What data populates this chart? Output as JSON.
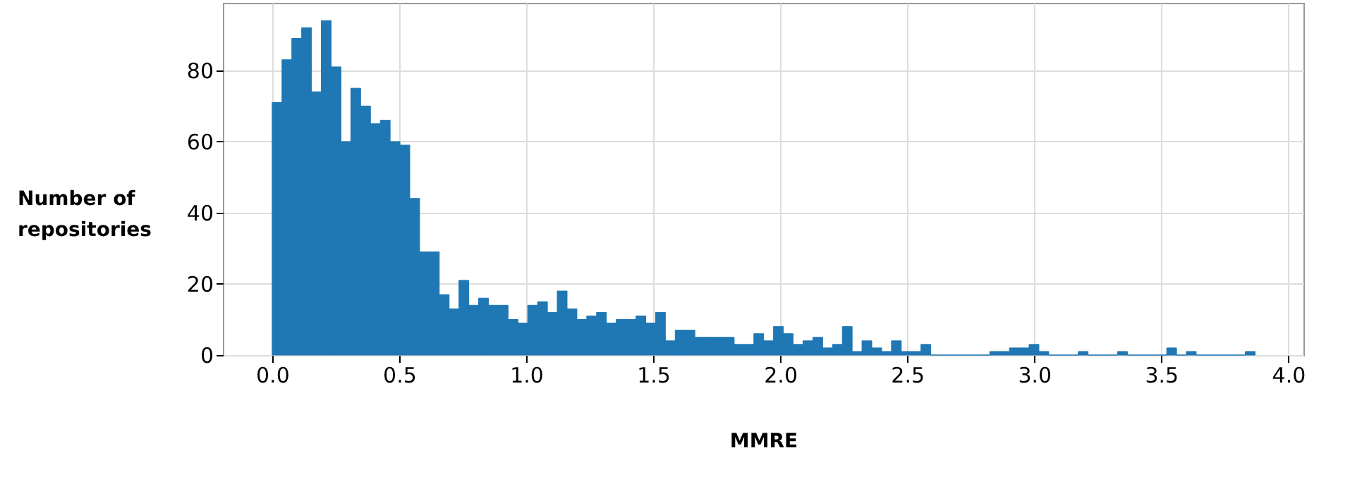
{
  "chart_data": {
    "type": "histogram",
    "xlabel": "MMRE",
    "ylabel": "Number of repositories",
    "color": "#1f77b4",
    "bins": [
      0,
      0.0387,
      0.0774,
      0.1161,
      0.1548,
      0.1935,
      0.2322,
      0.2709,
      0.3096,
      0.3483,
      0.387,
      0.4257,
      0.4644,
      0.5031,
      0.5418,
      0.5805,
      0.6192,
      0.6579,
      0.6966,
      0.7353,
      0.774,
      0.8127,
      0.8514,
      0.8901,
      0.9288,
      0.9675,
      1.0062,
      1.0449,
      1.0836,
      1.1223,
      1.161,
      1.1997,
      1.2384,
      1.2771,
      1.3158,
      1.3545,
      1.3932,
      1.4319,
      1.4706,
      1.5093,
      1.548,
      1.5867,
      1.6254,
      1.6641,
      1.7028,
      1.7415,
      1.7802,
      1.8189,
      1.8576,
      1.8963,
      1.935,
      1.9737,
      2.0124,
      2.0511,
      2.0898,
      2.1285,
      2.1672,
      2.2059,
      2.2446,
      2.2833,
      2.322,
      2.3607,
      2.3994,
      2.4381,
      2.4768,
      2.5155,
      2.5542,
      2.5929,
      2.6316,
      2.6703,
      2.709,
      2.7477,
      2.7864,
      2.8251,
      2.8638,
      2.9025,
      2.9412,
      2.9799,
      3.0186,
      3.0573,
      3.096,
      3.1347,
      3.1734,
      3.2121,
      3.2508,
      3.2895,
      3.3282,
      3.3669,
      3.4056,
      3.4443,
      3.483,
      3.5217,
      3.5604,
      3.5991,
      3.6378,
      3.6765,
      3.7152,
      3.7539,
      3.7926,
      3.8313,
      3.87
    ],
    "values": [
      71,
      83,
      89,
      92,
      74,
      94,
      81,
      60,
      75,
      70,
      65,
      66,
      60,
      59,
      44,
      29,
      29,
      17,
      13,
      21,
      14,
      16,
      14,
      14,
      10,
      9,
      14,
      15,
      12,
      18,
      13,
      10,
      11,
      12,
      9,
      10,
      10,
      11,
      9,
      12,
      4,
      7,
      7,
      5,
      5,
      5,
      5,
      3,
      3,
      6,
      4,
      8,
      6,
      3,
      4,
      5,
      2,
      3,
      8,
      1,
      4,
      2,
      1,
      4,
      1,
      1,
      3,
      0,
      0,
      0,
      0,
      0,
      0,
      1,
      1,
      2,
      2,
      3,
      1,
      0,
      0,
      0,
      1,
      0,
      0,
      0,
      1,
      0,
      0,
      0,
      0,
      2,
      0,
      1,
      0,
      0,
      0,
      0,
      0,
      1
    ],
    "xlim": [
      -0.194,
      4.06
    ],
    "ylim": [
      0,
      99
    ],
    "xticks": [
      {
        "value": 0,
        "label": "0.0"
      },
      0.5,
      {
        "value": 1,
        "label": "1.0"
      },
      1.5,
      {
        "value": 2,
        "label": "2.0"
      },
      2.5,
      {
        "value": 3,
        "label": "3.0"
      },
      3.5,
      {
        "value": 4,
        "label": "4.0"
      }
    ],
    "yticks": [
      0,
      20,
      40,
      60,
      80
    ],
    "grid": true
  }
}
